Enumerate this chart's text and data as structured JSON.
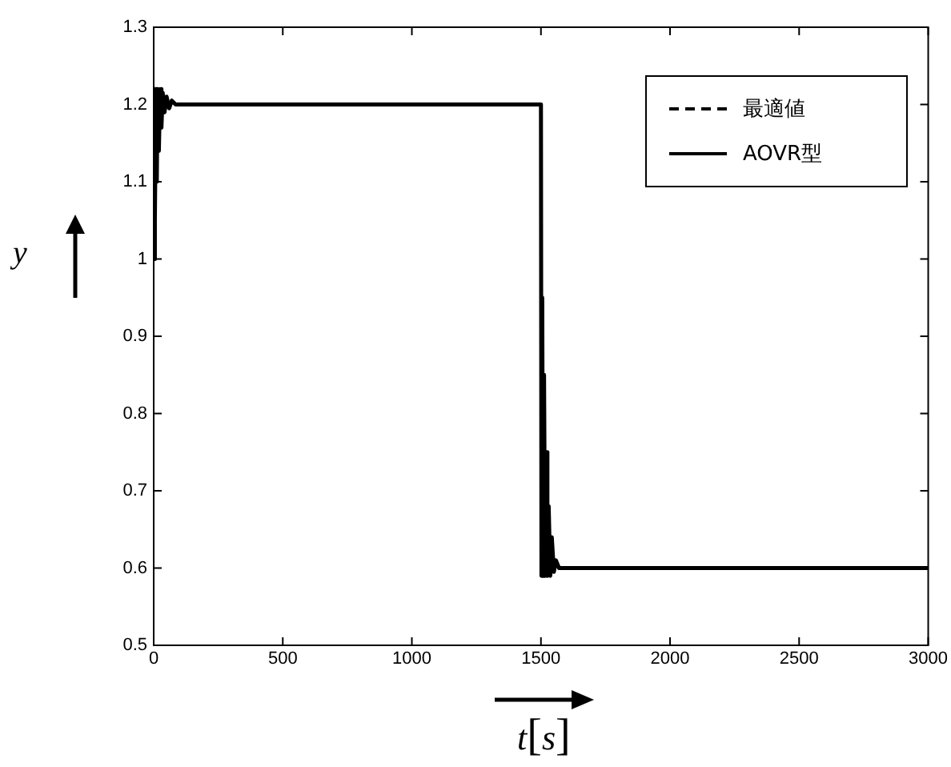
{
  "chart_data": {
    "type": "line",
    "xlabel": "t[s]",
    "ylabel": "y",
    "xlim": [
      0,
      3000
    ],
    "ylim": [
      0.5,
      1.3
    ],
    "xticks": [
      0,
      500,
      1000,
      1500,
      2000,
      2500,
      3000
    ],
    "yticks": [
      0.5,
      0.6,
      0.7,
      0.8,
      0.9,
      1,
      1.1,
      1.2,
      1.3
    ],
    "legend": "top right",
    "marker": "none",
    "series": [
      {
        "name": "最適値",
        "color": "#000000",
        "line_style": "dashed",
        "values": [
          null
        ]
      },
      {
        "name": "AOVR型",
        "color": "#000000",
        "line_style": "solid",
        "x": [
          0,
          3,
          6,
          9,
          12,
          15,
          20,
          25,
          30,
          35,
          42,
          50,
          60,
          70,
          85,
          1500,
          1502,
          1505,
          1508,
          1512,
          1516,
          1520,
          1525,
          1530,
          1536,
          1542,
          1550,
          1558,
          1570,
          3000
        ],
        "values": [
          1.0,
          1.22,
          1.05,
          1.22,
          1.1,
          1.22,
          1.14,
          1.22,
          1.17,
          1.215,
          1.19,
          1.21,
          1.195,
          1.205,
          1.2,
          1.2,
          0.59,
          0.95,
          0.59,
          0.85,
          0.59,
          0.75,
          0.59,
          0.68,
          0.59,
          0.64,
          0.595,
          0.61,
          0.6,
          0.6
        ]
      }
    ]
  }
}
